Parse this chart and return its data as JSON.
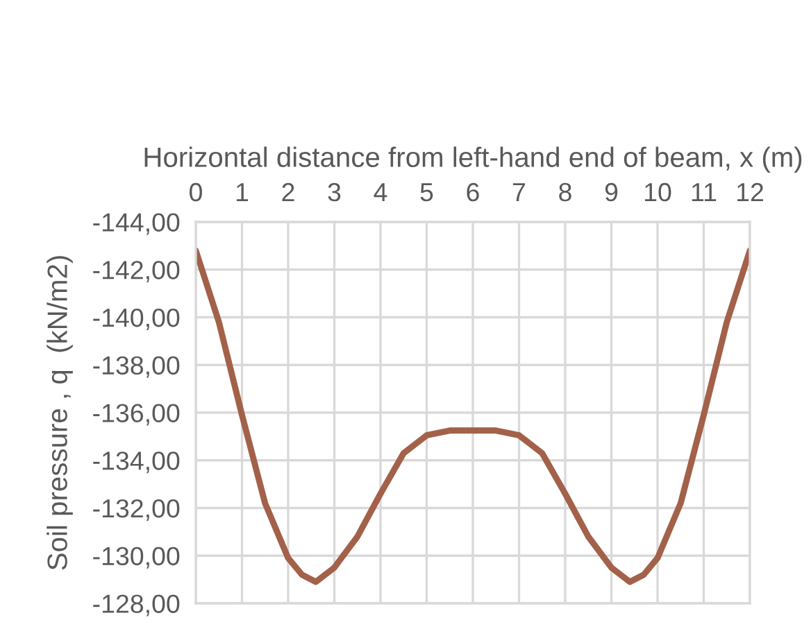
{
  "chart_data": {
    "type": "line",
    "xlabel": "Horizontal distance from left-hand end of beam, x (m)",
    "ylabel": "Soil pressure , q  (kN/m2)",
    "series": [
      {
        "color": "#a3614a",
        "x": [
          0,
          0.5,
          1,
          1.5,
          2,
          2.3,
          2.6,
          3,
          3.5,
          4,
          4.5,
          5,
          5.5,
          6,
          6.5,
          7,
          7.5,
          8,
          8.5,
          9,
          9.4,
          9.7,
          10,
          10.5,
          11,
          11.5,
          12
        ],
        "values": [
          -142.8,
          -139.8,
          -135.9,
          -132.2,
          -129.9,
          -129.2,
          -128.9,
          -129.5,
          -130.8,
          -132.6,
          -134.3,
          -135.05,
          -135.25,
          -135.25,
          -135.25,
          -135.05,
          -134.3,
          -132.6,
          -130.8,
          -129.5,
          -128.9,
          -129.2,
          -129.9,
          -132.2,
          -135.9,
          -139.8,
          -142.8
        ]
      }
    ],
    "xlim": [
      0,
      12
    ],
    "xticks": [
      0,
      1,
      2,
      3,
      4,
      5,
      6,
      7,
      8,
      9,
      10,
      11,
      12
    ],
    "ylim": [
      -128,
      -144
    ],
    "yticks": [
      {
        "value": -144,
        "label": "-144,00"
      },
      {
        "value": -142,
        "label": "-142,00"
      },
      {
        "value": -140,
        "label": "-140,00"
      },
      {
        "value": -138,
        "label": "-138,00"
      },
      {
        "value": -136,
        "label": "-136,00"
      },
      {
        "value": -134,
        "label": "-134,00"
      },
      {
        "value": -132,
        "label": "-132,00"
      },
      {
        "value": -130,
        "label": "-130,00"
      },
      {
        "value": -128,
        "label": "-128,00"
      }
    ],
    "grid": true,
    "marker": "none",
    "line_style": "solid",
    "legend": false
  }
}
